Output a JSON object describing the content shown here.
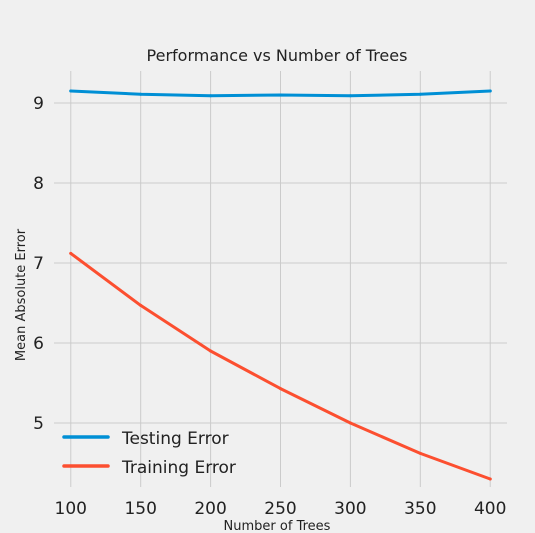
{
  "chart_data": {
    "type": "line",
    "title": "Performance vs Number of Trees",
    "xlabel": "Number of Trees",
    "ylabel": "Mean Absolute Error",
    "x": [
      100,
      150,
      200,
      250,
      300,
      350,
      400
    ],
    "xticks": [
      100,
      150,
      200,
      250,
      300,
      350,
      400
    ],
    "yticks": [
      5,
      6,
      7,
      8,
      9
    ],
    "xlim": [
      88,
      412
    ],
    "ylim": [
      4.2,
      9.4
    ],
    "grid": true,
    "legend_position": "lower-left",
    "series": [
      {
        "name": "Testing Error",
        "color": "#008fd5",
        "values": [
          9.15,
          9.11,
          9.09,
          9.1,
          9.09,
          9.11,
          9.15
        ]
      },
      {
        "name": "Training Error",
        "color": "#fc4f30",
        "values": [
          7.12,
          6.47,
          5.9,
          5.43,
          5.0,
          4.62,
          4.3
        ]
      }
    ]
  }
}
